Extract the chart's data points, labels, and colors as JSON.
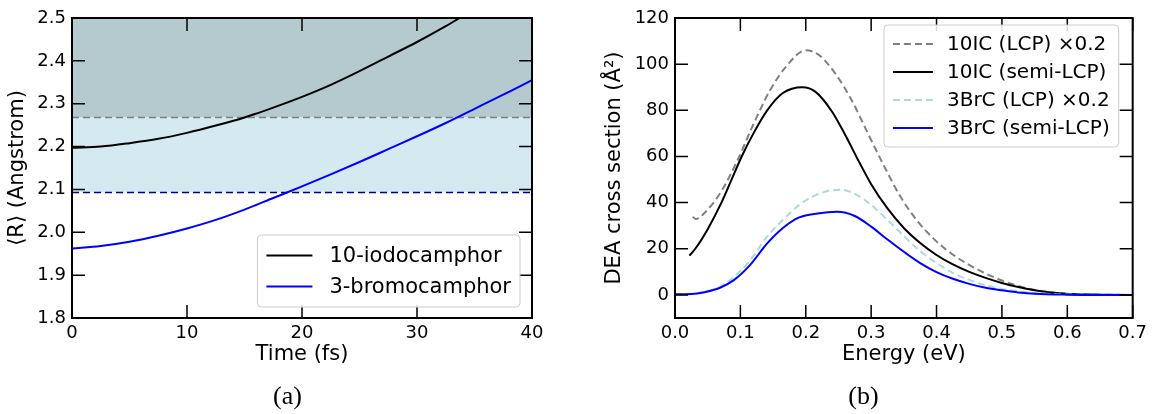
{
  "chart_data": [
    {
      "type": "line",
      "xlabel": "Time (fs)",
      "ylabel": "⟨R⟩ (Angstrom)",
      "annotations": [
        "(a)"
      ],
      "xlim": [
        0,
        40
      ],
      "xticks": [
        0,
        10,
        20,
        30,
        40
      ],
      "ylim": [
        1.8,
        2.5
      ],
      "yticks": [
        1.8,
        1.9,
        {
          "value": 2,
          "label": "2.0"
        },
        2.1,
        2.2,
        2.3,
        2.4,
        2.5
      ],
      "series": [
        {
          "name": "10-iodocamphor",
          "color": "#000000",
          "x": [
            0,
            2.5,
            5,
            7.5,
            10,
            12.5,
            15,
            17.5,
            20,
            22.5,
            25,
            27.5,
            30,
            32.5,
            33.7
          ],
          "values": [
            2.197,
            2.2,
            2.208,
            2.218,
            2.232,
            2.249,
            2.268,
            2.291,
            2.316,
            2.344,
            2.376,
            2.41,
            2.444,
            2.481,
            2.5
          ]
        },
        {
          "name": "3-bromocamphor",
          "color": "#0000ff",
          "x": [
            0,
            2.5,
            5,
            7.5,
            10,
            12.5,
            15,
            17.5,
            20,
            22.5,
            25,
            27.5,
            30,
            32.5,
            35,
            37.5,
            40
          ],
          "values": [
            1.962,
            1.968,
            1.978,
            1.992,
            2.009,
            2.029,
            2.053,
            2.08,
            2.107,
            2.135,
            2.164,
            2.194,
            2.224,
            2.255,
            2.288,
            2.321,
            2.355
          ]
        }
      ],
      "bands": [
        {
          "axis": "y",
          "from": 2.268,
          "to": 2.5,
          "color": "#b5cacf"
        },
        {
          "axis": "y",
          "from": 2.093,
          "to": 2.268,
          "color": "#d4eaf0"
        }
      ],
      "ref_lines": [
        {
          "axis": "y",
          "value": 2.268,
          "color": "#808080",
          "line_style": "dashed"
        },
        {
          "axis": "y",
          "value": 2.093,
          "color": "#000080",
          "line_style": "dashed"
        }
      ],
      "grid": false,
      "legend": "bottom right",
      "marker": "none",
      "line_style": "solid"
    },
    {
      "type": "line",
      "xlabel": "Energy (eV)",
      "ylabel": "DEA cross section (Å²)",
      "annotations": [
        "(b)"
      ],
      "xlim": [
        0,
        0.7
      ],
      "xticks": [
        {
          "value": 0,
          "label": "0.0"
        },
        0.1,
        0.2,
        0.3,
        0.4,
        0.5,
        0.6,
        0.7
      ],
      "ylim": [
        -10,
        120
      ],
      "yticks": [
        0,
        20,
        40,
        60,
        80,
        100,
        120
      ],
      "series": [
        {
          "name": "10IC (LCP) ×0.2",
          "color": "#808080",
          "line_style": "dashed",
          "x": [
            0.027,
            0.032,
            0.045,
            0.07,
            0.095,
            0.12,
            0.145,
            0.17,
            0.2,
            0.22,
            0.245,
            0.27,
            0.295,
            0.32,
            0.345,
            0.37,
            0.395,
            0.42,
            0.445,
            0.47,
            0.495,
            0.52,
            0.545,
            0.57,
            0.6,
            0.65,
            0.7
          ],
          "values": [
            33.9,
            32.9,
            35.5,
            44.5,
            58,
            74,
            88.5,
            99,
            106,
            104,
            96,
            84.5,
            70,
            55.7,
            42.5,
            32.3,
            24.5,
            18.5,
            13.8,
            10,
            6.8,
            4.3,
            2.5,
            1.3,
            0.5,
            0.1,
            0
          ]
        },
        {
          "name": "10IC (semi-LCP)",
          "color": "#000000",
          "line_style": "solid",
          "x": [
            0.022,
            0.031,
            0.05,
            0.071,
            0.085,
            0.102,
            0.12,
            0.141,
            0.165,
            0.195,
            0.215,
            0.24,
            0.26,
            0.28,
            0.3,
            0.325,
            0.35,
            0.375,
            0.4,
            0.425,
            0.45,
            0.475,
            0.5,
            0.525,
            0.55,
            0.575,
            0.6,
            0.65,
            0.7
          ],
          "values": [
            17,
            20,
            28.5,
            40,
            49,
            60,
            70,
            80,
            87.5,
            90,
            88,
            79.5,
            69.5,
            58.5,
            48,
            37.5,
            29,
            22.5,
            17.3,
            13.2,
            10,
            7.4,
            5.2,
            3.4,
            2,
            1,
            0.4,
            0.1,
            0
          ]
        },
        {
          "name": "3BrC (LCP) ×0.2",
          "color": "#add8e6",
          "line_style": "dashed",
          "x": [
            0,
            0.025,
            0.045,
            0.068,
            0.09,
            0.115,
            0.14,
            0.165,
            0.19,
            0.22,
            0.252,
            0.275,
            0.3,
            0.325,
            0.35,
            0.375,
            0.4,
            0.425,
            0.45,
            0.475,
            0.5,
            0.525,
            0.55,
            0.575,
            0.6,
            0.65,
            0.7
          ],
          "values": [
            0.4,
            0.5,
            1.2,
            3.3,
            7.8,
            15,
            25,
            32.5,
            39,
            43.8,
            45.6,
            43.8,
            39,
            32.5,
            25.5,
            19,
            13.8,
            9.6,
            6.5,
            4.2,
            2.6,
            1.5,
            0.8,
            0.4,
            0.2,
            0,
            0
          ]
        },
        {
          "name": "3BrC (semi-LCP)",
          "color": "#0000ff",
          "line_style": "solid",
          "x": [
            0,
            0.025,
            0.045,
            0.068,
            0.09,
            0.115,
            0.14,
            0.165,
            0.19,
            0.218,
            0.248,
            0.275,
            0.3,
            0.325,
            0.35,
            0.375,
            0.4,
            0.425,
            0.45,
            0.475,
            0.5,
            0.525,
            0.55,
            0.6,
            0.65,
            0.7
          ],
          "values": [
            0.3,
            0.4,
            1.2,
            3,
            6.4,
            13,
            22,
            29,
            33.6,
            35.3,
            36,
            34.2,
            29.6,
            24,
            18.7,
            13.8,
            9.9,
            7,
            4.8,
            3.1,
            2,
            1.1,
            0.5,
            0.1,
            0,
            0
          ]
        }
      ],
      "grid": false,
      "legend": "top right",
      "marker": "none"
    }
  ]
}
